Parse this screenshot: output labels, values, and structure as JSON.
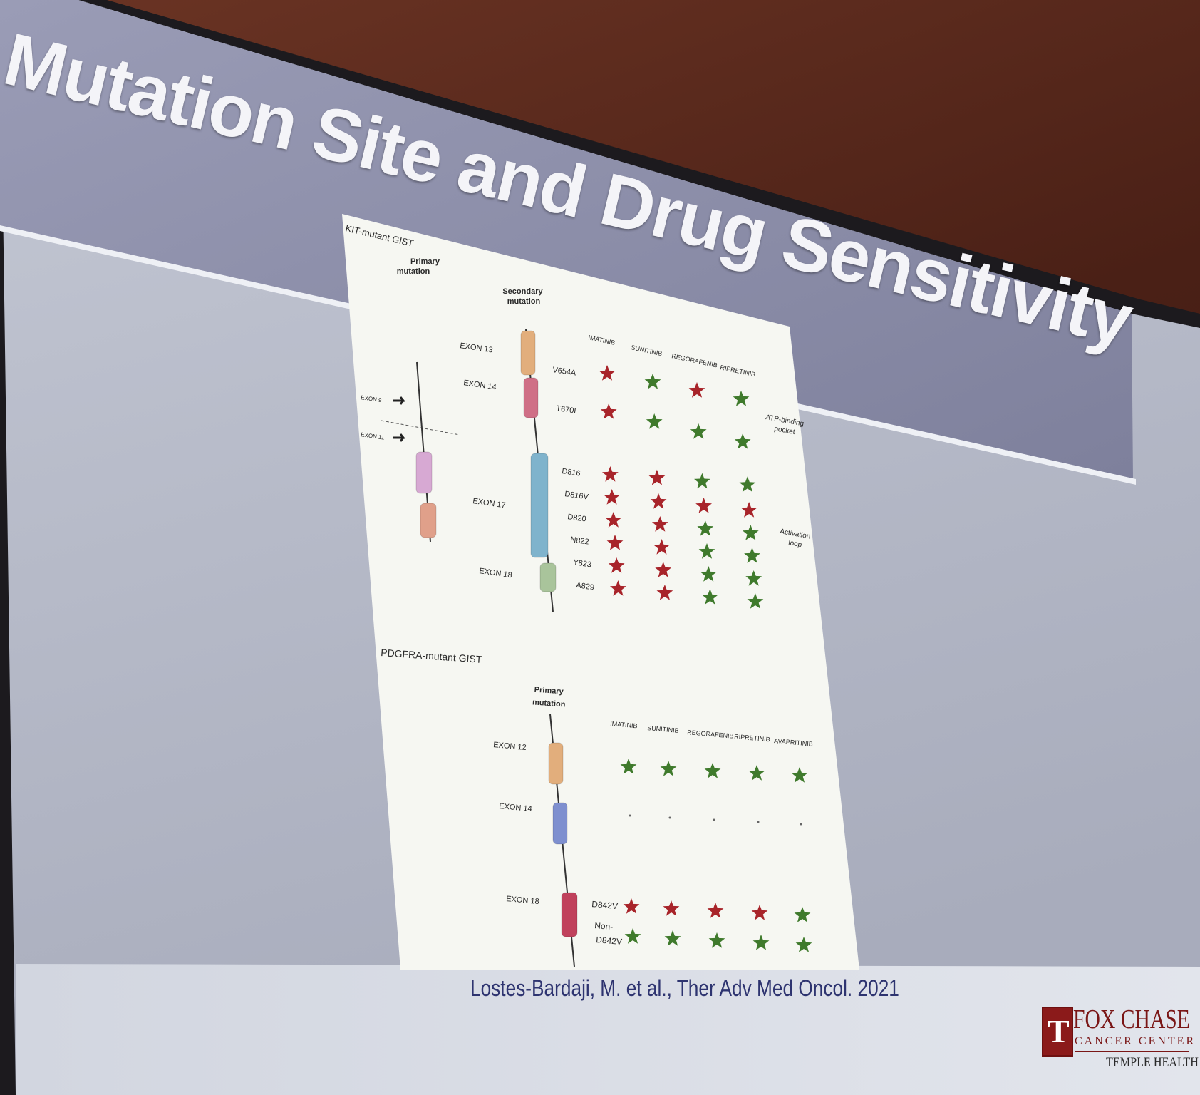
{
  "slide": {
    "title": "Mutation Site and Drug Sensitivity",
    "citation": "Lostes-Bardaji, M. et al., Ther Adv Med Oncol. 2021",
    "logo": {
      "line1": "FOX CHASE",
      "line2": "CANCER CENTER",
      "line3": "TEMPLE HEALTH"
    }
  },
  "kit": {
    "heading": "KIT-mutant GIST",
    "primary_label": [
      "Primary",
      "mutation"
    ],
    "secondary_label": [
      "Secondary",
      "mutation"
    ],
    "primary_arrows": [
      "EXON 9",
      "EXON 11"
    ],
    "exons": [
      "EXON 13",
      "EXON 14",
      "EXON 17",
      "EXON 18"
    ],
    "drugs": [
      "IMATINIB",
      "SUNITINIB",
      "REGORAFENIB",
      "RIPRETINIB"
    ],
    "regions": {
      "atp": [
        "ATP-binding",
        "pocket"
      ],
      "activation": [
        "Activation",
        "loop"
      ]
    },
    "mutations": [
      {
        "name": "V654A",
        "sensitivity": [
          "resistant",
          "sensitive",
          "resistant",
          "sensitive"
        ]
      },
      {
        "name": "T670I",
        "sensitivity": [
          "resistant",
          "sensitive",
          "sensitive",
          "sensitive"
        ]
      },
      {
        "name": "D816",
        "sensitivity": [
          "resistant",
          "resistant",
          "sensitive",
          "sensitive"
        ]
      },
      {
        "name": "D816V",
        "sensitivity": [
          "resistant",
          "resistant",
          "resistant",
          "resistant"
        ]
      },
      {
        "name": "D820",
        "sensitivity": [
          "resistant",
          "resistant",
          "sensitive",
          "sensitive"
        ]
      },
      {
        "name": "N822",
        "sensitivity": [
          "resistant",
          "resistant",
          "sensitive",
          "sensitive"
        ]
      },
      {
        "name": "Y823",
        "sensitivity": [
          "resistant",
          "resistant",
          "sensitive",
          "sensitive"
        ]
      },
      {
        "name": "A829",
        "sensitivity": [
          "resistant",
          "resistant",
          "sensitive",
          "sensitive"
        ]
      }
    ]
  },
  "pdgfra": {
    "heading": "PDGFRA-mutant GIST",
    "primary_label": [
      "Primary",
      "mutation"
    ],
    "exons": [
      "EXON 12",
      "EXON 14",
      "EXON 18"
    ],
    "drugs": [
      "IMATINIB",
      "SUNITINIB",
      "REGORAFENIB",
      "RIPRETINIB",
      "AVAPRITINIB"
    ],
    "rows": [
      {
        "name": "",
        "sensitivity": [
          "sensitive",
          "sensitive",
          "sensitive",
          "sensitive",
          "sensitive"
        ]
      },
      {
        "name": "",
        "sensitivity": [
          "none",
          "none",
          "none",
          "none",
          "none"
        ]
      },
      {
        "name": "D842V",
        "sensitivity": [
          "resistant",
          "resistant",
          "resistant",
          "resistant",
          "sensitive"
        ]
      },
      {
        "name": "Non-D842V",
        "sensitivity": [
          "sensitive",
          "sensitive",
          "sensitive",
          "sensitive",
          "sensitive"
        ]
      }
    ]
  },
  "colors": {
    "sensitive": "#3f7a2c",
    "resistant": "#a8242a",
    "exon_orange": "#e2ae7c",
    "exon_pink": "#cf6f86",
    "exon_blue": "#7fb3cc",
    "exon_green": "#a9c49b",
    "exon_purple": "#7e8fcf",
    "exon_crimson": "#c0415c",
    "exon_lilac": "#d7a9d3",
    "exon_peach": "#e0a08a"
  }
}
